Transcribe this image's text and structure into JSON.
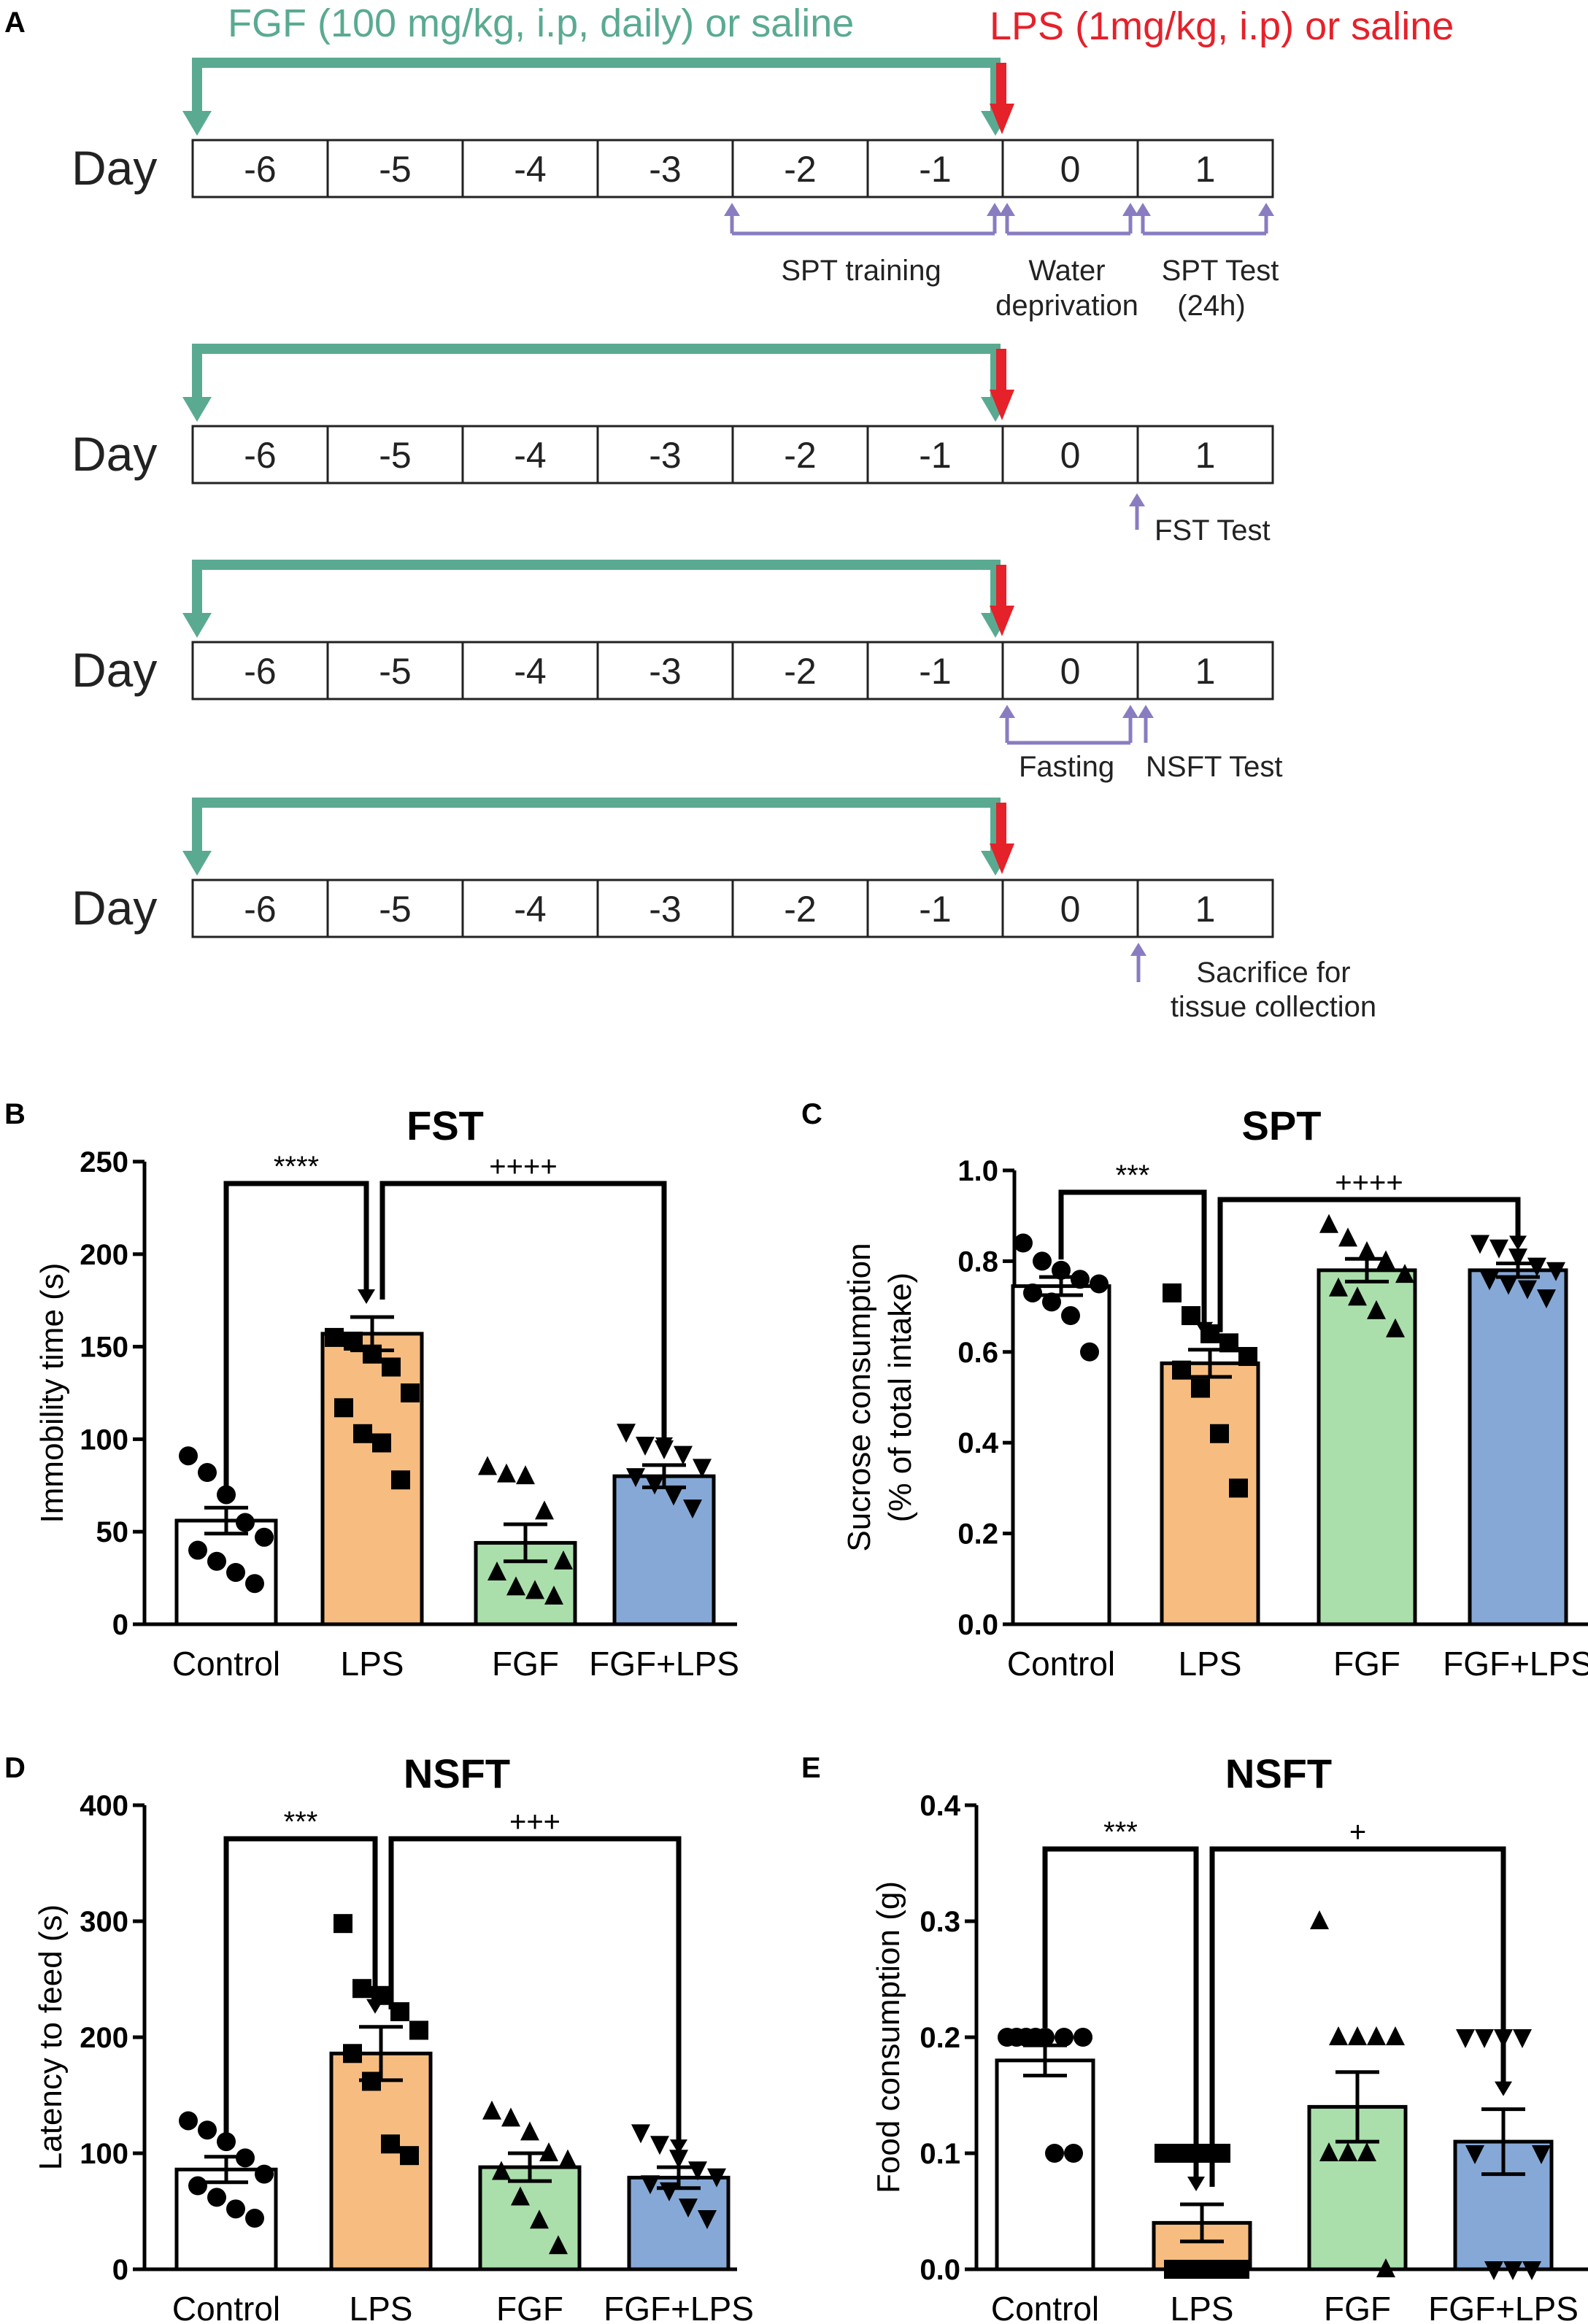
{
  "panel_labels": {
    "A": "A",
    "B": "B",
    "C": "C",
    "D": "D",
    "E": "E"
  },
  "colors": {
    "teal": "#5aaa92",
    "red": "#e5212a",
    "purple": "#8a7cc0",
    "control": "#ffffff",
    "lps": "#f7bd80",
    "fgf": "#aadfab",
    "fgf_lps": "#86a8d6"
  },
  "timeline": {
    "fgf_label": "FGF (100 mg/kg, i.p, daily) or saline",
    "lps_label": "LPS (1mg/kg, i.p) or saline",
    "day_label": "Day",
    "days": [
      "-6",
      "-5",
      "-4",
      "-3",
      "-2",
      "-1",
      "0",
      "1"
    ],
    "rows": [
      {
        "annotations": [
          "SPT training",
          "Water",
          "deprivation",
          "SPT Test",
          "(24h)"
        ]
      },
      {
        "annotations": [
          "FST  Test"
        ]
      },
      {
        "annotations": [
          "Fasting",
          "NSFT Test"
        ]
      },
      {
        "annotations": [
          "Sacrifice  for",
          "tissue collection"
        ]
      }
    ]
  },
  "chart_data": [
    {
      "id": "B",
      "type": "bar",
      "title": "FST",
      "xlabel": "",
      "ylabel": "Immobility time (s)",
      "ylim": [
        0,
        250
      ],
      "yticks": [
        "0",
        "50",
        "100",
        "150",
        "200",
        "250"
      ],
      "categories": [
        "Control",
        "LPS",
        "FGF",
        "FGF+LPS"
      ],
      "values": [
        56,
        157,
        44,
        80
      ],
      "errors": [
        7,
        9,
        10,
        6
      ],
      "markers": [
        "circle",
        "square",
        "triangle",
        "triangle-down"
      ],
      "points": [
        [
          91,
          82,
          70,
          55,
          47,
          40,
          34,
          28,
          22
        ],
        [
          155,
          153,
          146,
          139,
          125,
          117,
          103,
          98,
          78
        ],
        [
          85,
          81,
          80,
          61,
          34,
          28,
          20,
          18,
          15
        ],
        [
          104,
          97,
          95,
          92,
          85,
          80,
          76,
          70,
          63
        ]
      ],
      "comparisons": [
        {
          "text": "****",
          "from": 0,
          "to": 1
        },
        {
          "text": "++++",
          "from": 1,
          "to": 3
        }
      ]
    },
    {
      "id": "C",
      "type": "bar",
      "title": "SPT",
      "xlabel": "",
      "ylabel": "Sucrose  consumption",
      "ylabel2": "(% of total  intake)",
      "ylim": [
        0,
        1.0
      ],
      "yticks": [
        "0.0",
        "0.2",
        "0.4",
        "0.6",
        "0.8",
        "1.0"
      ],
      "categories": [
        "Control",
        "LPS",
        "FGF",
        "FGF+LPS"
      ],
      "values": [
        0.745,
        0.575,
        0.78,
        0.78
      ],
      "errors": [
        0.02,
        0.03,
        0.025,
        0.015
      ],
      "markers": [
        "circle",
        "square",
        "triangle",
        "triangle-down"
      ],
      "points": [
        [
          0.84,
          0.8,
          0.78,
          0.76,
          0.75,
          0.73,
          0.71,
          0.68,
          0.6
        ],
        [
          0.73,
          0.68,
          0.64,
          0.62,
          0.59,
          0.56,
          0.52,
          0.42,
          0.3
        ],
        [
          0.88,
          0.85,
          0.82,
          0.8,
          0.77,
          0.74,
          0.72,
          0.69,
          0.65
        ],
        [
          0.84,
          0.83,
          0.81,
          0.79,
          0.78,
          0.76,
          0.75,
          0.74,
          0.72
        ]
      ],
      "comparisons": [
        {
          "text": "***",
          "from": 0,
          "to": 1
        },
        {
          "text": "++++",
          "from": 1,
          "to": 3
        }
      ]
    },
    {
      "id": "D",
      "type": "bar",
      "title": "NSFT",
      "xlabel": "",
      "ylabel": "Latency to feed (s)",
      "ylim": [
        0,
        400
      ],
      "yticks": [
        "0",
        "100",
        "200",
        "300",
        "400"
      ],
      "categories": [
        "Control",
        "LPS",
        "FGF",
        "FGF+LPS"
      ],
      "values": [
        86,
        186,
        88,
        79
      ],
      "errors": [
        11,
        23,
        12,
        9
      ],
      "markers": [
        "circle",
        "square",
        "triangle",
        "triangle-down"
      ],
      "points": [
        [
          128,
          120,
          110,
          96,
          82,
          72,
          62,
          52,
          44
        ],
        [
          298,
          242,
          236,
          222,
          206,
          186,
          162,
          108,
          98
        ],
        [
          136,
          130,
          118,
          100,
          94,
          84,
          62,
          42,
          20
        ],
        [
          118,
          108,
          96,
          86,
          80,
          74,
          68,
          54,
          44
        ]
      ],
      "comparisons": [
        {
          "text": "***",
          "from": 0,
          "to": 1
        },
        {
          "text": "+++",
          "from": 1,
          "to": 3
        }
      ]
    },
    {
      "id": "E",
      "type": "bar",
      "title": "NSFT",
      "xlabel": "",
      "ylabel": "Food consumption (g)",
      "ylim": [
        0,
        0.4
      ],
      "yticks": [
        "0.0",
        "0.1",
        "0.2",
        "0.3",
        "0.4"
      ],
      "categories": [
        "Control",
        "LPS",
        "FGF",
        "FGF+LPS"
      ],
      "values": [
        0.18,
        0.04,
        0.14,
        0.11
      ],
      "errors": [
        0.013,
        0.016,
        0.03,
        0.028
      ],
      "markers": [
        "circle",
        "square",
        "triangle",
        "triangle-down"
      ],
      "points": [
        [
          0.2,
          0.2,
          0.2,
          0.2,
          0.2,
          0.2,
          0.2,
          0.1,
          0.1
        ],
        [
          0.1,
          0.1,
          0.1,
          0.1,
          0,
          0,
          0,
          0,
          0
        ],
        [
          0.3,
          0.2,
          0.2,
          0.2,
          0.2,
          0.1,
          0.1,
          0.1,
          0
        ],
        [
          0.2,
          0.2,
          0.2,
          0.2,
          0.1,
          0.1,
          0,
          0,
          0
        ]
      ],
      "comparisons": [
        {
          "text": "***",
          "from": 0,
          "to": 1
        },
        {
          "text": "+",
          "from": 1,
          "to": 3
        }
      ]
    }
  ]
}
